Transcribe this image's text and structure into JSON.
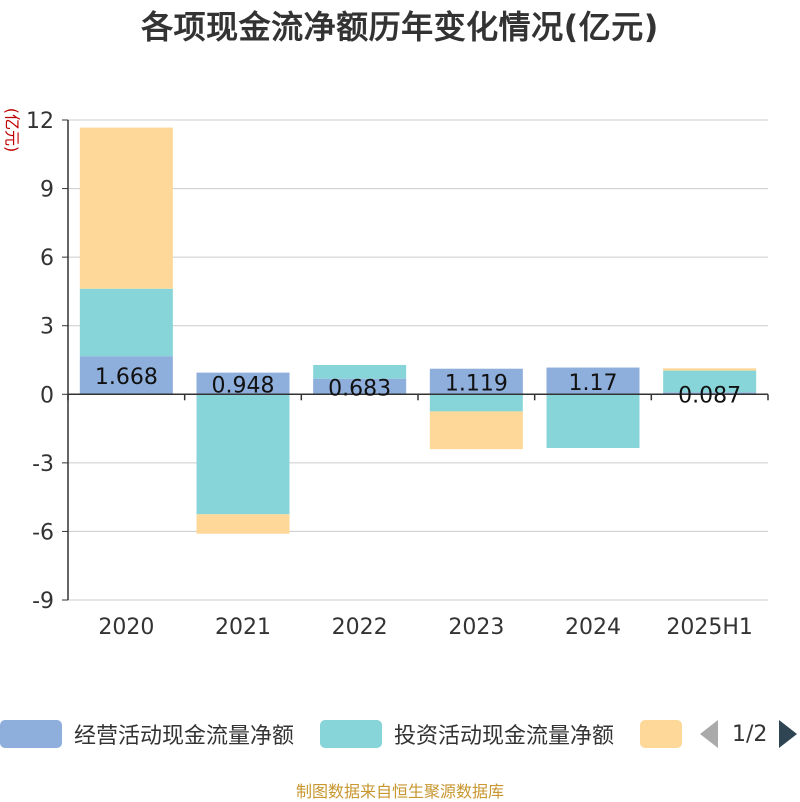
{
  "title": "各项现金流净额历年变化情况(亿元)",
  "unit_label": "(亿元)",
  "legend": {
    "items": [
      {
        "label": "经营活动现金流量净额",
        "color": "#8eaedb"
      },
      {
        "label": "投资活动现金流量净额",
        "color": "#87d5d8"
      },
      {
        "label": "",
        "color": "#fdd898"
      }
    ],
    "page": "1/2"
  },
  "source": "制图数据来自恒生聚源数据库",
  "colors": {
    "operating": "#8eaedb",
    "investing": "#87d5d8",
    "financing": "#fdd898",
    "grid": "#cccccc",
    "axis": "#333333"
  },
  "chart_data": {
    "type": "bar",
    "stacked": true,
    "title": "各项现金流净额历年变化情况(亿元)",
    "ylabel": "(亿元)",
    "categories": [
      "2020",
      "2021",
      "2022",
      "2023",
      "2024",
      "2025H1"
    ],
    "ylim": [
      -9,
      12
    ],
    "yticks": [
      12,
      9,
      6,
      3,
      0,
      -3,
      -6,
      -9
    ],
    "grid": true,
    "legend_position": "bottom",
    "series": [
      {
        "name": "经营活动现金流量净额",
        "values": [
          1.668,
          0.948,
          0.683,
          1.119,
          1.17,
          0.087
        ]
      },
      {
        "name": "投资活动现金流量净额",
        "values": [
          2.95,
          -5.25,
          0.6,
          -0.75,
          -2.35,
          0.95
        ]
      },
      {
        "values": [
          7.05,
          -0.85,
          0,
          -1.65,
          0,
          0.1
        ]
      }
    ],
    "data_labels": [
      "1.668",
      "0.948",
      "0.683",
      "1.119",
      "1.17",
      "0.087"
    ]
  }
}
